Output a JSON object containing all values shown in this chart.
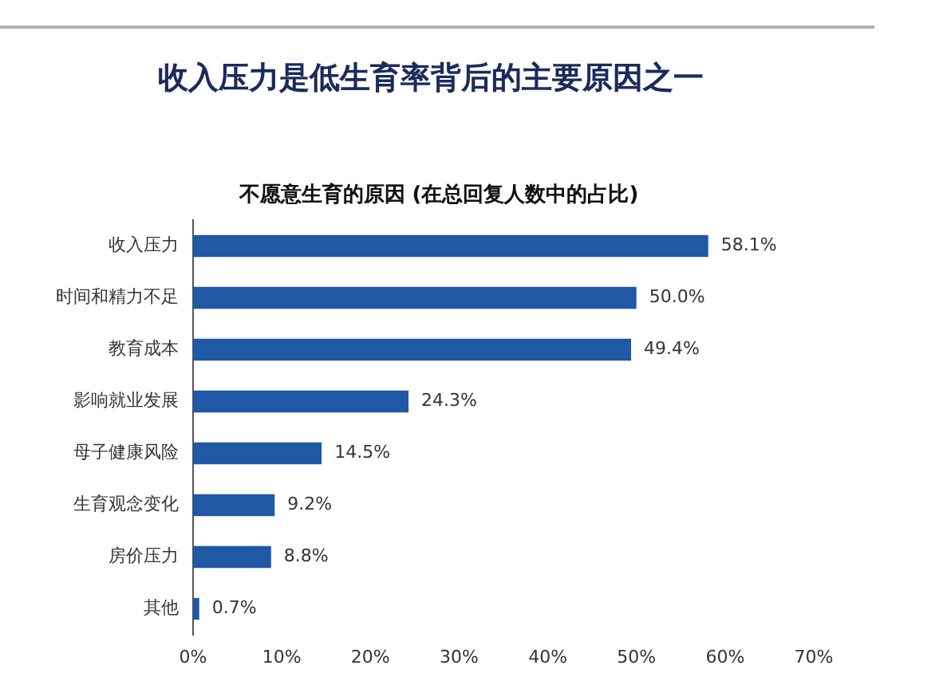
{
  "chart_data": {
    "type": "bar",
    "orientation": "horizontal",
    "title": "收入压力是低生育率背后的主要原因之一",
    "subtitle": "不愿意生育的原因 (在总回复人数中的占比)",
    "categories": [
      "收入压力",
      "时间和精力不足",
      "教育成本",
      "影响就业发展",
      "母子健康风险",
      "生育观念变化",
      "房价压力",
      "其他"
    ],
    "values": [
      58.1,
      50.0,
      49.4,
      24.3,
      14.5,
      9.2,
      8.8,
      0.7
    ],
    "value_labels": [
      "58.1%",
      "50.0%",
      "49.4%",
      "24.3%",
      "14.5%",
      "9.2%",
      "8.8%",
      "0.7%"
    ],
    "color": "#1f58a3",
    "xlim": [
      0,
      70
    ],
    "xticks": [
      {
        "value": 0,
        "label": "0%"
      },
      {
        "value": 10,
        "label": "10%"
      },
      {
        "value": 20,
        "label": "20%"
      },
      {
        "value": 30,
        "label": "30%"
      },
      {
        "value": 40,
        "label": "40%"
      },
      {
        "value": 50,
        "label": "50%"
      },
      {
        "value": 60,
        "label": "60%"
      },
      {
        "value": 70,
        "label": "70%"
      }
    ]
  }
}
